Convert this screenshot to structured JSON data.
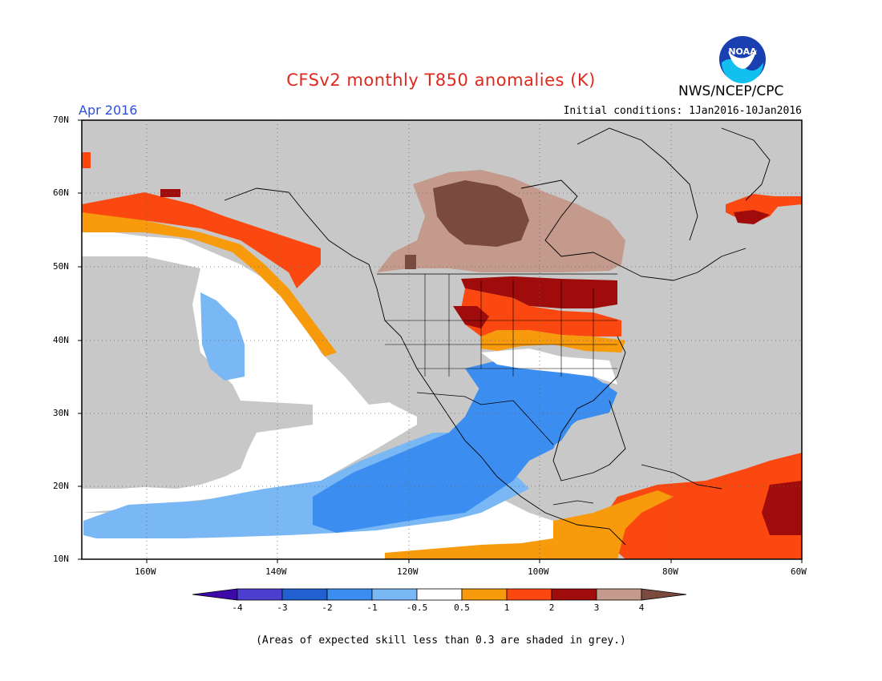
{
  "title": "CFSv2 monthly T850 anomalies (K)",
  "agency": "NWS/NCEP/CPC",
  "logo_text": "NOAA",
  "month": "Apr 2016",
  "initial_conditions": "Initial conditions: 1Jan2016-10Jan2016",
  "lat_labels": [
    "70N",
    "60N",
    "50N",
    "40N",
    "30N",
    "20N",
    "10N"
  ],
  "lon_labels": [
    "160W",
    "140W",
    "120W",
    "100W",
    "80W",
    "60W"
  ],
  "colorbar": {
    "labels": [
      "-4",
      "-3",
      "-2",
      "-1",
      "-0.5",
      "0.5",
      "1",
      "2",
      "3",
      "4"
    ],
    "colors": [
      "#3d0aa8",
      "#4a3fcf",
      "#2060d0",
      "#3b8ef0",
      "#7ab8f5",
      "#ffffff",
      "#f79a0c",
      "#fa4810",
      "#a00c0c",
      "#c49a8c",
      "#7a4a3e"
    ]
  },
  "footnote": "(Areas of expected skill less than 0.3 are shaded in grey.)",
  "colors": {
    "grey": "#c8c8c8",
    "title": "#e0281e",
    "month": "#2b4fe0"
  }
}
